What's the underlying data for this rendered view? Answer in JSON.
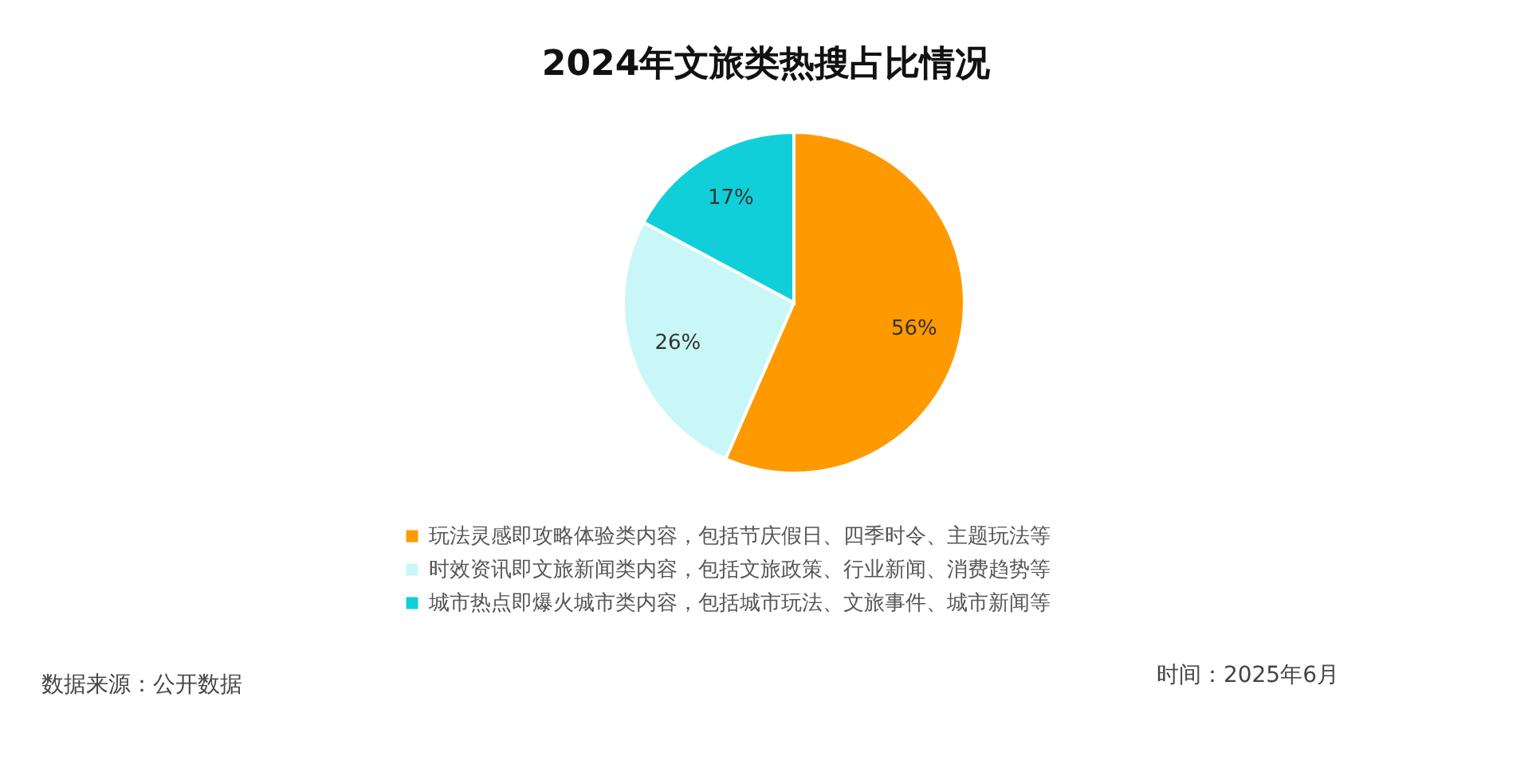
{
  "chart_data": {
    "type": "pie",
    "title": "2024年文旅类热搜占比情况",
    "categories": [
      "玩法灵感即攻略体验类内容，包括节庆假日、四季时令、主题玩法等",
      "时效资讯即文旅新闻类内容，包括文旅政策、行业新闻、消费趋势等",
      "城市热点即爆火城市类内容，包括城市玩法、文旅事件、城市新闻等"
    ],
    "values": [
      56,
      26,
      17
    ],
    "value_labels": [
      "56%",
      "26%",
      "17%"
    ],
    "colors": [
      "#ff9900",
      "#c9f7f8",
      "#11cfd8"
    ],
    "legend": "bottom",
    "annotations": [
      "数据来源：公开数据",
      "时间：2025年6月"
    ]
  }
}
